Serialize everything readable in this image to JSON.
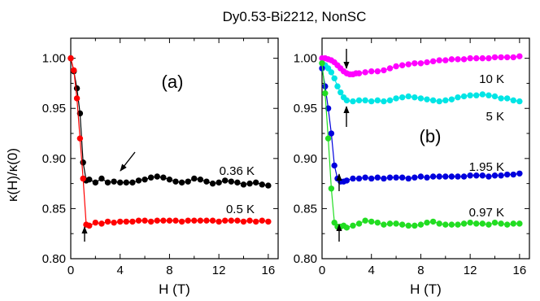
{
  "figure_title": "Dy0.53-Bi2212, NonSC",
  "chart_data": [
    {
      "type": "line",
      "panel_label": "(a)",
      "xlabel": "H (T)",
      "ylabel": "κ(H)/κ(0)",
      "xlim": [
        0,
        16.8
      ],
      "ylim": [
        0.8,
        1.02
      ],
      "xticks": [
        0,
        4,
        8,
        12,
        16
      ],
      "yticks": [
        0.8,
        0.85,
        0.9,
        0.95,
        1.0
      ],
      "ytick_labels": [
        "0.80",
        "0.85",
        "0.90",
        "0.95",
        "1.00"
      ],
      "series": [
        {
          "name": "0.36 K",
          "color": "#000000",
          "x": [
            0,
            0.25,
            0.5,
            0.75,
            1.0,
            1.25,
            1.5,
            2.0,
            2.5,
            3.0,
            3.5,
            4.0,
            4.5,
            5.0,
            5.5,
            6.0,
            6.5,
            7.0,
            7.5,
            8.0,
            8.5,
            9.0,
            9.5,
            10.0,
            10.5,
            11.0,
            11.5,
            12.0,
            12.5,
            13.0,
            13.5,
            14.0,
            14.5,
            15.0,
            15.5,
            16.0
          ],
          "y": [
            1.0,
            0.987,
            0.97,
            0.945,
            0.896,
            0.878,
            0.879,
            0.876,
            0.88,
            0.876,
            0.877,
            0.876,
            0.876,
            0.876,
            0.878,
            0.879,
            0.881,
            0.882,
            0.881,
            0.879,
            0.877,
            0.876,
            0.877,
            0.88,
            0.879,
            0.877,
            0.875,
            0.876,
            0.878,
            0.877,
            0.876,
            0.874,
            0.875,
            0.876,
            0.874,
            0.873
          ]
        },
        {
          "name": "0.5 K",
          "color": "#ff0000",
          "x": [
            0,
            0.25,
            0.5,
            0.75,
            1.0,
            1.25,
            1.5,
            2.0,
            2.5,
            3.0,
            3.5,
            4.0,
            4.5,
            5.0,
            5.5,
            6.0,
            6.5,
            7.0,
            7.5,
            8.0,
            8.5,
            9.0,
            9.5,
            10.0,
            10.5,
            11.0,
            11.5,
            12.0,
            12.5,
            13.0,
            13.5,
            14.0,
            14.5,
            15.0,
            15.5,
            16.0
          ],
          "y": [
            1.0,
            0.988,
            0.96,
            0.92,
            0.88,
            0.834,
            0.833,
            0.836,
            0.835,
            0.837,
            0.836,
            0.837,
            0.837,
            0.837,
            0.838,
            0.838,
            0.837,
            0.838,
            0.838,
            0.838,
            0.838,
            0.837,
            0.838,
            0.838,
            0.838,
            0.838,
            0.838,
            0.837,
            0.838,
            0.838,
            0.838,
            0.837,
            0.838,
            0.837,
            0.838,
            0.837
          ]
        }
      ],
      "annotations": [
        {
          "type": "arrow",
          "target_x": 1.4,
          "target_y": 0.878,
          "direction": "from-upper-right"
        },
        {
          "type": "arrow",
          "target_x": 1.4,
          "target_y": 0.831,
          "direction": "from-below"
        }
      ]
    },
    {
      "type": "line",
      "panel_label": "(b)",
      "xlabel": "H (T)",
      "ylabel": "",
      "xlim": [
        0,
        16.8
      ],
      "ylim": [
        0.8,
        1.02
      ],
      "xticks": [
        0,
        4,
        8,
        12,
        16
      ],
      "yticks": [
        0.8,
        0.85,
        0.9,
        0.95,
        1.0
      ],
      "ytick_labels": [
        "0.80",
        "0.85",
        "0.90",
        "0.95",
        "1.00"
      ],
      "series": [
        {
          "name": "10 K",
          "color": "#ff00ff",
          "x": [
            0,
            0.25,
            0.5,
            0.75,
            1.0,
            1.25,
            1.5,
            1.75,
            2.0,
            2.25,
            2.5,
            2.75,
            3.0,
            3.5,
            4.0,
            4.5,
            5.0,
            5.5,
            6.0,
            6.5,
            7.0,
            7.5,
            8.0,
            8.5,
            9.0,
            9.5,
            10.0,
            10.5,
            11.0,
            11.5,
            12.0,
            12.5,
            13.0,
            13.5,
            14.0,
            14.5,
            15.0,
            15.5,
            16.0
          ],
          "y": [
            1.0,
            1.0,
            0.999,
            0.998,
            0.996,
            0.993,
            0.99,
            0.987,
            0.985,
            0.984,
            0.984,
            0.985,
            0.985,
            0.986,
            0.987,
            0.987,
            0.988,
            0.99,
            0.992,
            0.993,
            0.994,
            0.995,
            0.995,
            0.996,
            0.997,
            0.998,
            0.998,
            0.999,
            0.999,
            0.999,
            1.0,
            1.0,
            1.0,
            1.0,
            1.001,
            1.001,
            1.001,
            1.001,
            1.002
          ]
        },
        {
          "name": "5 K",
          "color": "#00e5e5",
          "x": [
            0,
            0.25,
            0.5,
            0.75,
            1.0,
            1.25,
            1.5,
            1.75,
            2.0,
            2.5,
            3.0,
            3.5,
            4.0,
            4.5,
            5.0,
            5.5,
            6.0,
            6.5,
            7.0,
            7.5,
            8.0,
            8.5,
            9.0,
            9.5,
            10.0,
            10.5,
            11.0,
            11.5,
            12.0,
            12.5,
            13.0,
            13.5,
            14.0,
            14.5,
            15.0,
            15.5,
            16.0
          ],
          "y": [
            0.995,
            0.993,
            0.99,
            0.986,
            0.98,
            0.972,
            0.966,
            0.961,
            0.958,
            0.957,
            0.958,
            0.958,
            0.957,
            0.958,
            0.957,
            0.958,
            0.96,
            0.961,
            0.962,
            0.961,
            0.96,
            0.959,
            0.958,
            0.957,
            0.958,
            0.959,
            0.961,
            0.962,
            0.963,
            0.963,
            0.964,
            0.963,
            0.962,
            0.96,
            0.96,
            0.958,
            0.957
          ]
        },
        {
          "name": "1.95 K",
          "color": "#0000dd",
          "x": [
            0,
            0.25,
            0.5,
            0.75,
            1.0,
            1.25,
            1.5,
            1.75,
            2.0,
            2.5,
            3.0,
            3.5,
            4.0,
            4.5,
            5.0,
            5.5,
            6.0,
            6.5,
            7.0,
            7.5,
            8.0,
            8.5,
            9.0,
            9.5,
            10.0,
            10.5,
            11.0,
            11.5,
            12.0,
            12.5,
            13.0,
            13.5,
            14.0,
            14.5,
            15.0,
            15.5,
            16.0
          ],
          "y": [
            0.99,
            0.972,
            0.95,
            0.925,
            0.893,
            0.88,
            0.877,
            0.877,
            0.878,
            0.88,
            0.88,
            0.881,
            0.88,
            0.881,
            0.88,
            0.881,
            0.881,
            0.881,
            0.88,
            0.881,
            0.882,
            0.881,
            0.882,
            0.882,
            0.882,
            0.882,
            0.882,
            0.882,
            0.883,
            0.883,
            0.883,
            0.882,
            0.883,
            0.883,
            0.884,
            0.884,
            0.885
          ]
        },
        {
          "name": "0.97 K",
          "color": "#22dd22",
          "x": [
            0,
            0.25,
            0.5,
            0.75,
            1.0,
            1.25,
            1.5,
            1.75,
            2.0,
            2.5,
            3.0,
            3.5,
            4.0,
            4.5,
            5.0,
            5.5,
            6.0,
            6.5,
            7.0,
            7.5,
            8.0,
            8.5,
            9.0,
            9.5,
            10.0,
            10.5,
            11.0,
            11.5,
            12.0,
            12.5,
            13.0,
            13.5,
            14.0,
            14.5,
            15.0,
            15.5,
            16.0
          ],
          "y": [
            0.995,
            0.965,
            0.92,
            0.87,
            0.836,
            0.832,
            0.832,
            0.833,
            0.831,
            0.833,
            0.835,
            0.838,
            0.837,
            0.836,
            0.834,
            0.835,
            0.835,
            0.834,
            0.833,
            0.833,
            0.834,
            0.836,
            0.837,
            0.835,
            0.834,
            0.834,
            0.834,
            0.835,
            0.836,
            0.835,
            0.835,
            0.834,
            0.836,
            0.835,
            0.834,
            0.835,
            0.835
          ]
        }
      ],
      "annotations": [
        {
          "type": "arrow",
          "target_x": 2.0,
          "target_y": 0.987,
          "direction": "from-above"
        },
        {
          "type": "arrow",
          "target_x": 1.8,
          "target_y": 0.955,
          "direction": "from-below"
        },
        {
          "type": "arrow",
          "target_x": 1.5,
          "target_y": 0.875,
          "direction": "from-below"
        },
        {
          "type": "arrow",
          "target_x": 1.5,
          "target_y": 0.828,
          "direction": "from-below"
        }
      ]
    }
  ]
}
